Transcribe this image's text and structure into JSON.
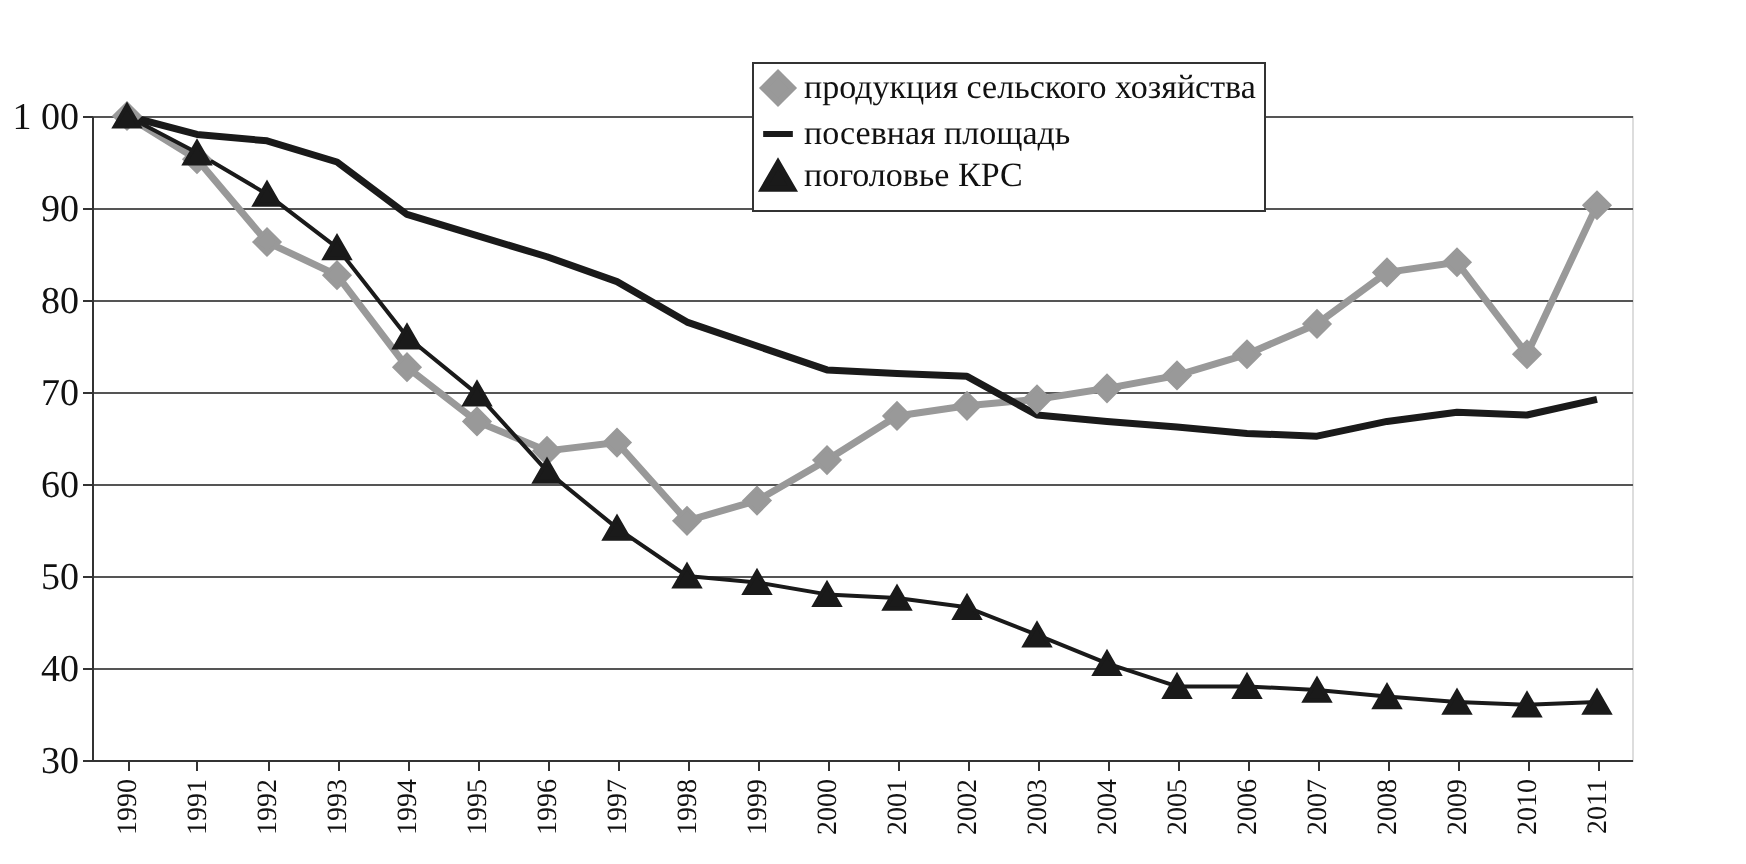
{
  "chart_data": {
    "type": "line",
    "categories": [
      "1990",
      "1991",
      "1992",
      "1993",
      "1994",
      "1995",
      "1996",
      "1997",
      "1998",
      "1999",
      "2000",
      "2001",
      "2002",
      "2003",
      "2004",
      "2005",
      "2006",
      "2007",
      "2008",
      "2009",
      "2010",
      "2011"
    ],
    "series": [
      {
        "name": "продукция сельского хозяйства",
        "color": "#999999",
        "marker": "diamond",
        "values": [
          100,
          95.3,
          86.3,
          82.7,
          72.7,
          66.8,
          63.6,
          64.5,
          56,
          58.2,
          62.6,
          67.4,
          68.5,
          69.2,
          70.4,
          71.8,
          74.1,
          77.4,
          83,
          84.1,
          74.1,
          90.3
        ]
      },
      {
        "name": "посевная площадь",
        "color": "#1a1a1a",
        "marker": "none",
        "values": [
          100,
          98,
          97.3,
          95,
          89.3,
          87,
          84.7,
          82,
          77.6,
          75,
          72.4,
          72,
          71.7,
          67.5,
          66.8,
          66.2,
          65.5,
          65.2,
          66.8,
          67.8,
          67.5,
          69.2
        ]
      },
      {
        "name": "поголовье КРС",
        "color": "#1a1a1a",
        "marker": "triangle",
        "values": [
          100,
          96,
          91.5,
          85.7,
          76,
          69.8,
          61.4,
          55.2,
          50,
          49.3,
          48,
          47.6,
          46.6,
          43.6,
          40.5,
          38,
          38,
          37.6,
          36.9,
          36.3,
          36,
          36.3
        ]
      }
    ],
    "ylim": [
      30,
      100
    ],
    "yticks": [
      30,
      40,
      50,
      60,
      70,
      80,
      90,
      {
        "value": 100,
        "label": "1 00"
      }
    ],
    "grid": "y",
    "legend": "top right",
    "line_style": "solid"
  }
}
